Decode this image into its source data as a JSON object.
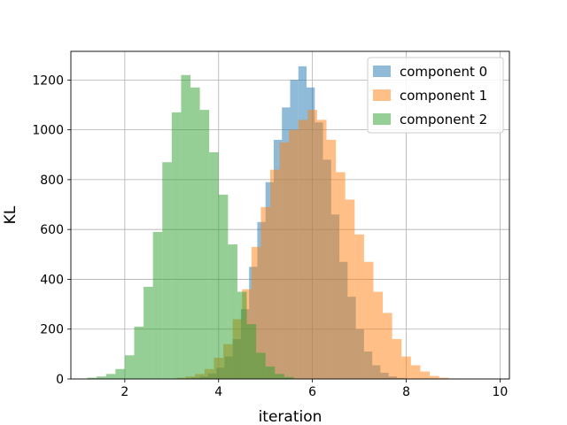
{
  "chart_data": {
    "type": "histogram",
    "xlabel": "iteration",
    "ylabel": "KL",
    "xlim": [
      0.85,
      10.2
    ],
    "ylim": [
      0,
      1315
    ],
    "xticks": [
      2,
      4,
      6,
      8,
      10
    ],
    "yticks": [
      0,
      200,
      400,
      600,
      800,
      1000,
      1200
    ],
    "grid": true,
    "legend_position": "top-right",
    "series": [
      {
        "name": "component 0",
        "color": "#1f77b4",
        "opacity": 0.5,
        "bin_start": 3.25,
        "bin_width": 0.175,
        "counts": [
          2,
          5,
          10,
          22,
          45,
          90,
          160,
          280,
          450,
          630,
          790,
          960,
          1090,
          1200,
          1255,
          1170,
          1030,
          880,
          660,
          470,
          330,
          200,
          110,
          55,
          25,
          10,
          4
        ]
      },
      {
        "name": "component 1",
        "color": "#ff7f0e",
        "opacity": 0.5,
        "bin_start": 3.1,
        "bin_width": 0.2,
        "counts": [
          5,
          10,
          20,
          40,
          85,
          140,
          240,
          360,
          530,
          690,
          840,
          950,
          1000,
          1040,
          1080,
          1040,
          960,
          830,
          720,
          580,
          470,
          350,
          265,
          160,
          90,
          55,
          30,
          12,
          5,
          2
        ]
      },
      {
        "name": "component 2",
        "color": "#2ca02c",
        "opacity": 0.5,
        "bin_start": 1.2,
        "bin_width": 0.2,
        "counts": [
          5,
          10,
          20,
          40,
          95,
          210,
          370,
          590,
          870,
          1070,
          1220,
          1170,
          1080,
          910,
          740,
          540,
          350,
          220,
          105,
          50,
          20,
          8
        ]
      }
    ]
  }
}
